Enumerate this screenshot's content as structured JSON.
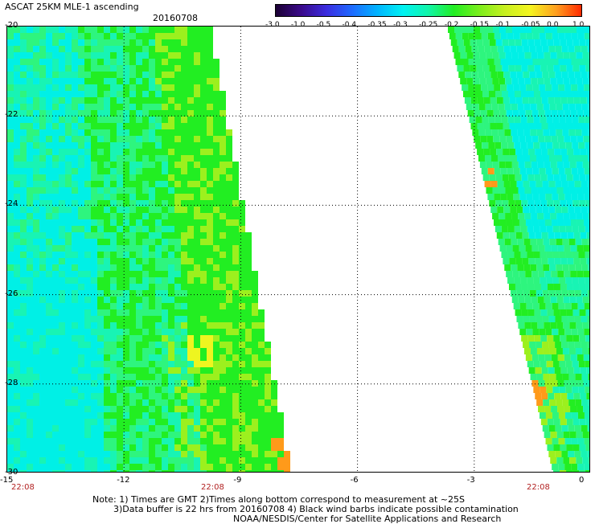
{
  "header": {
    "title": "ASCAT 25KM MLE-1 ascending",
    "date": "20160708"
  },
  "colorbar": {
    "labels": [
      "-3.0",
      "-1.0",
      "-0.5",
      "-0.4",
      "-0.35",
      "-0.3",
      "-0.25",
      "-0.2",
      "-0.15",
      "-0.1",
      "-0.05",
      "0.0",
      "1.0"
    ],
    "colors": [
      "#1a0033",
      "#3a0a8a",
      "#3b2de0",
      "#1e6bff",
      "#00b4ff",
      "#00f2f2",
      "#11f5a8",
      "#22ee22",
      "#7cee1c",
      "#c8f020",
      "#f5f520",
      "#ffa020",
      "#ff2a00"
    ]
  },
  "map": {
    "lat_labels": [
      "-20",
      "-22",
      "-24",
      "-26",
      "-28",
      "-30"
    ],
    "lon_labels": [
      "-15",
      "-12",
      "-9",
      "-6",
      "-3",
      "0"
    ],
    "time_labels": [
      "22:08",
      "22:08",
      "22:08"
    ],
    "swath_colors": {
      "cyan": "#00f0e6",
      "aqua": "#18f4b4",
      "mint": "#2ef57e",
      "green": "#22ee22",
      "lime": "#9cf01e",
      "yellow": "#eef520",
      "orange": "#ff9a1a"
    }
  },
  "footer": {
    "note_line1": "Note: 1) Times are GMT 2)Times along bottom correspond to measurement at ~25S",
    "note_line2": "3)Data buffer is 22 hrs from 20160708 4) Black wind barbs indicate possible contamination",
    "credit": "NOAA/NESDIS/Center for Satellite Applications and Research"
  }
}
